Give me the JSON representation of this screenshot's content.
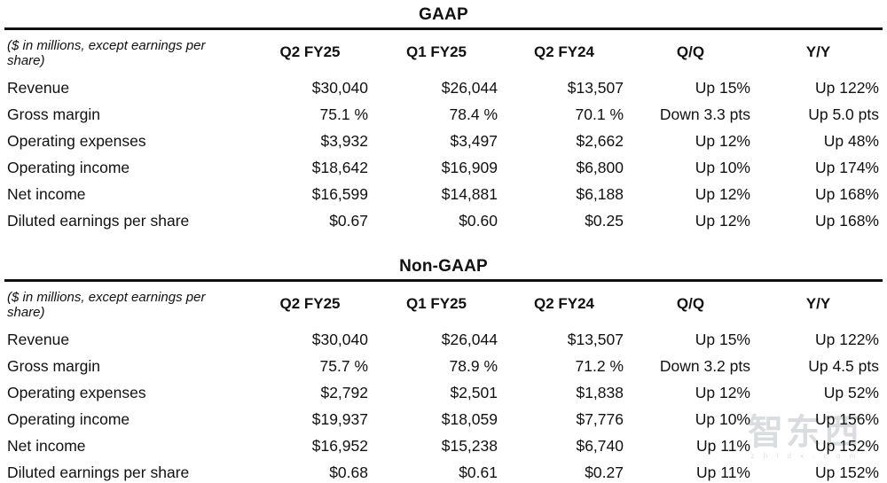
{
  "page": {
    "background": "#ffffff",
    "text_color": "#111111",
    "rule_color": "#111111"
  },
  "watermark": {
    "text": "智东西",
    "subtext": "z h i d x . c o m",
    "color": "#c3c8ca"
  },
  "chart_data": [
    {
      "type": "table",
      "title": "GAAP",
      "note": "($ in millions, except earnings per share)",
      "columns": [
        "Q2 FY25",
        "Q1 FY25",
        "Q2 FY24",
        "Q/Q",
        "Y/Y"
      ],
      "rows": [
        {
          "label": "Revenue",
          "values": [
            "$30,040",
            "$26,044",
            "$13,507",
            "Up 15%",
            "Up 122%"
          ]
        },
        {
          "label": "Gross margin",
          "values": [
            "75.1 %",
            "78.4 %",
            "70.1 %",
            "Down 3.3 pts",
            "Up 5.0 pts"
          ]
        },
        {
          "label": "Operating expenses",
          "values": [
            "$3,932",
            "$3,497",
            "$2,662",
            "Up 12%",
            "Up 48%"
          ]
        },
        {
          "label": "Operating income",
          "values": [
            "$18,642",
            "$16,909",
            "$6,800",
            "Up 10%",
            "Up 174%"
          ]
        },
        {
          "label": "Net income",
          "values": [
            "$16,599",
            "$14,881",
            "$6,188",
            "Up 12%",
            "Up 168%"
          ]
        },
        {
          "label": "Diluted earnings per share",
          "values": [
            "$0.67",
            "$0.60",
            "$0.25",
            "Up 12%",
            "Up 168%"
          ]
        }
      ]
    },
    {
      "type": "table",
      "title": "Non-GAAP",
      "note": "($ in millions, except earnings per share)",
      "columns": [
        "Q2 FY25",
        "Q1 FY25",
        "Q2 FY24",
        "Q/Q",
        "Y/Y"
      ],
      "rows": [
        {
          "label": "Revenue",
          "values": [
            "$30,040",
            "$26,044",
            "$13,507",
            "Up 15%",
            "Up 122%"
          ]
        },
        {
          "label": "Gross margin",
          "values": [
            "75.7 %",
            "78.9 %",
            "71.2 %",
            "Down 3.2 pts",
            "Up 4.5 pts"
          ]
        },
        {
          "label": "Operating expenses",
          "values": [
            "$2,792",
            "$2,501",
            "$1,838",
            "Up 12%",
            "Up 52%"
          ]
        },
        {
          "label": "Operating income",
          "values": [
            "$19,937",
            "$18,059",
            "$7,776",
            "Up 10%",
            "Up 156%"
          ]
        },
        {
          "label": "Net income",
          "values": [
            "$16,952",
            "$15,238",
            "$6,740",
            "Up 11%",
            "Up 152%"
          ]
        },
        {
          "label": "Diluted earnings per share",
          "values": [
            "$0.68",
            "$0.61",
            "$0.27",
            "Up 11%",
            "Up 152%"
          ]
        }
      ]
    }
  ]
}
